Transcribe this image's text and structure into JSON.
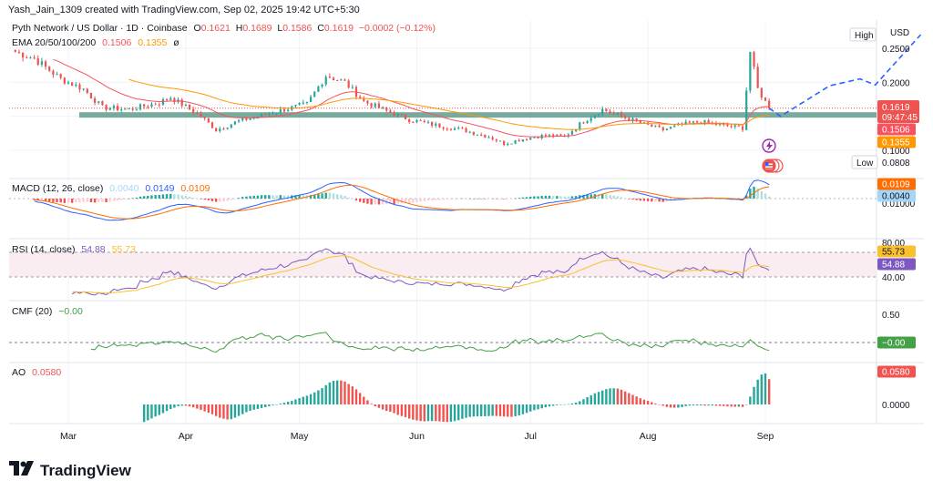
{
  "header": {
    "credit": "Yash_Jain_1309 created with TradingView.com, Sep 02, 2025 19:42 UTC+5:30"
  },
  "legend": {
    "symbol": "Pyth Network / US Dollar · 1D · Coinbase",
    "open_label": "O",
    "open": "0.1621",
    "high_label": "H",
    "high": "0.1689",
    "low_label": "L",
    "low": "0.1586",
    "close_label": "C",
    "close": "0.1619",
    "change": "−0.0002 (−0.12%)",
    "ema_label": "EMA 20/50/100/200",
    "ema20": "0.1506",
    "ema50": "0.1355",
    "ema_empty": "ø"
  },
  "panes": {
    "macd": {
      "label": "MACD (12, 26, close)",
      "hist": "0.0040",
      "macd": "0.0149",
      "signal": "0.0109"
    },
    "rsi": {
      "label": "RSI (14, close)",
      "rsi": "54.88",
      "ma": "55.73"
    },
    "cmf": {
      "label": "CMF (20)",
      "value": "−0.00"
    },
    "ao": {
      "label": "AO",
      "value": "0.0580"
    }
  },
  "axis": {
    "currency": "USD",
    "high_tag": "High",
    "low_tag": "Low",
    "low_value": "0.0808",
    "price_ticks": [
      "0.2500",
      "0.2000",
      "0.1000"
    ],
    "price_badge": "0.1619",
    "countdown": "09:47:45",
    "ema20_badge": "0.1506",
    "ema50_badge": "0.1355",
    "macd_ticks": [
      "0.01000"
    ],
    "macd_badge1": "0.0109",
    "macd_badge2": "0.0040",
    "rsi_ticks": [
      "80.00",
      "40.00"
    ],
    "rsi_badge1": "55.73",
    "rsi_badge2": "54.88",
    "cmf_ticks": [
      "0.50"
    ],
    "cmf_badge": "−0.00",
    "ao_ticks": [
      "0.0000"
    ],
    "ao_badge": "0.0580"
  },
  "time_axis": [
    "Mar",
    "Apr",
    "May",
    "Jun",
    "Jul",
    "Aug",
    "Sep"
  ],
  "footer": {
    "brand": "TradingView"
  },
  "colors": {
    "up": "#26a69a",
    "down": "#ef5350",
    "zone": "#5f9c8c",
    "ema20": "#f7525f",
    "ema50": "#ff9800",
    "macd": "#2962ff",
    "signal": "#ff6d00",
    "rsi": "#7e57c2",
    "cmf": "#43a047",
    "projection": "#2962ff"
  },
  "chart_data": {
    "type": "candlestick",
    "symbol": "Pyth Network / US Dollar",
    "timeframe": "1D",
    "exchange": "Coinbase",
    "x_range": [
      "2025-02-15",
      "2025-09-02"
    ],
    "month_ticks": [
      "Mar",
      "Apr",
      "May",
      "Jun",
      "Jul",
      "Aug",
      "Sep"
    ],
    "price_ylim": [
      0.08,
      0.28
    ],
    "price_keypoints": [
      {
        "date": "2025-02-15",
        "close": 0.245
      },
      {
        "date": "2025-02-20",
        "close": 0.235
      },
      {
        "date": "2025-02-27",
        "close": 0.205
      },
      {
        "date": "2025-03-05",
        "close": 0.19
      },
      {
        "date": "2025-03-10",
        "close": 0.163
      },
      {
        "date": "2025-03-17",
        "close": 0.16
      },
      {
        "date": "2025-03-25",
        "close": 0.17
      },
      {
        "date": "2025-03-28",
        "close": 0.178
      },
      {
        "date": "2025-04-05",
        "close": 0.15
      },
      {
        "date": "2025-04-09",
        "close": 0.13
      },
      {
        "date": "2025-04-15",
        "close": 0.143
      },
      {
        "date": "2025-04-20",
        "close": 0.15
      },
      {
        "date": "2025-04-27",
        "close": 0.16
      },
      {
        "date": "2025-05-03",
        "close": 0.168
      },
      {
        "date": "2025-05-08",
        "close": 0.21
      },
      {
        "date": "2025-05-13",
        "close": 0.2
      },
      {
        "date": "2025-05-18",
        "close": 0.172
      },
      {
        "date": "2025-05-23",
        "close": 0.16
      },
      {
        "date": "2025-05-30",
        "close": 0.145
      },
      {
        "date": "2025-06-06",
        "close": 0.137
      },
      {
        "date": "2025-06-13",
        "close": 0.13
      },
      {
        "date": "2025-06-20",
        "close": 0.12
      },
      {
        "date": "2025-06-24",
        "close": 0.11
      },
      {
        "date": "2025-06-30",
        "close": 0.118
      },
      {
        "date": "2025-07-05",
        "close": 0.122
      },
      {
        "date": "2025-07-10",
        "close": 0.12
      },
      {
        "date": "2025-07-15",
        "close": 0.143
      },
      {
        "date": "2025-07-20",
        "close": 0.16
      },
      {
        "date": "2025-07-24",
        "close": 0.152
      },
      {
        "date": "2025-07-30",
        "close": 0.14
      },
      {
        "date": "2025-08-05",
        "close": 0.13
      },
      {
        "date": "2025-08-10",
        "close": 0.138
      },
      {
        "date": "2025-08-15",
        "close": 0.142
      },
      {
        "date": "2025-08-20",
        "close": 0.137
      },
      {
        "date": "2025-08-26",
        "close": 0.133
      },
      {
        "date": "2025-08-28",
        "close": 0.245
      },
      {
        "date": "2025-08-30",
        "close": 0.19
      },
      {
        "date": "2025-09-02",
        "close": 0.1619
      }
    ],
    "support_zone": [
      0.148,
      0.156
    ],
    "projection": [
      {
        "date": "2025-09-02",
        "price": 0.162
      },
      {
        "date": "2025-09-05",
        "price": 0.15
      },
      {
        "date": "2025-09-18",
        "price": 0.195
      },
      {
        "date": "2025-09-26",
        "price": 0.205
      },
      {
        "date": "2025-09-30",
        "price": 0.196
      },
      {
        "date": "2025-10-12",
        "price": 0.27
      }
    ],
    "indicators": {
      "ema20_last": 0.1506,
      "ema50_last": 0.1355,
      "macd": {
        "macd": 0.0149,
        "signal": 0.0109,
        "histogram": 0.004
      },
      "rsi": {
        "value": 54.88,
        "ma": 55.73,
        "upper": 80,
        "lower": 40
      },
      "cmf": {
        "value": -0.0
      },
      "ao": {
        "value": 0.058
      }
    }
  }
}
